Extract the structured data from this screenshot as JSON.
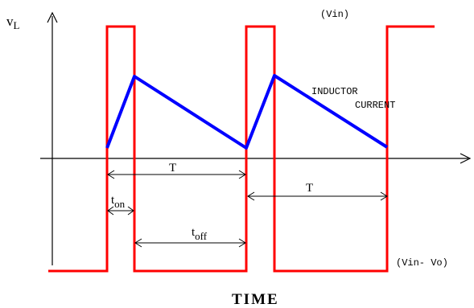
{
  "labels": {
    "y_axis_main": "v",
    "y_axis_sub": "L",
    "vin": "(Vin)",
    "vin_minus_vo": "(Vin- Vo)",
    "inductor_line1": "INDUCTOR",
    "inductor_line2": "CURRENT",
    "period_1": "T",
    "period_2": "T",
    "t_on_main": "t",
    "t_on_sub": "on",
    "t_off_main": "t",
    "t_off_sub": "off",
    "x_axis": "TIME"
  },
  "colors": {
    "voltage_waveform": "#ff0000",
    "inductor_current": "#0000ff",
    "axes": "#000000"
  }
}
